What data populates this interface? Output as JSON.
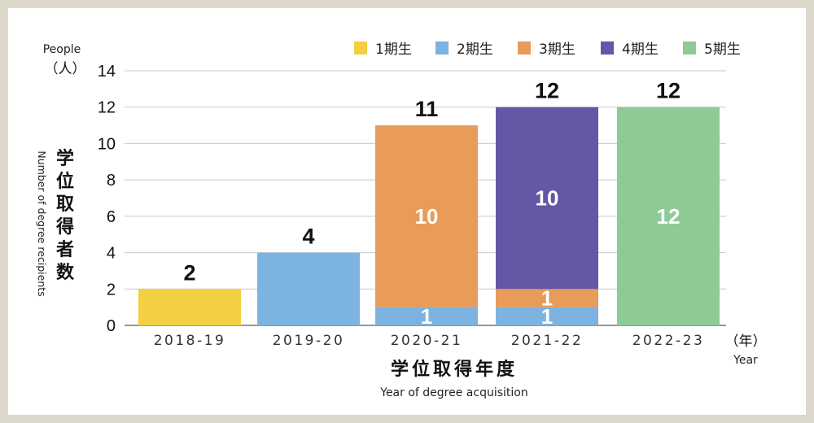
{
  "chart_data": {
    "type": "bar",
    "stacked": true,
    "title": "",
    "categories": [
      "2018-19",
      "2019-20",
      "2020-21",
      "2021-22",
      "2022-23"
    ],
    "series": [
      {
        "name": "1期生",
        "color": "#f2cf43",
        "values": [
          2,
          0,
          0,
          0,
          0
        ]
      },
      {
        "name": "2期生",
        "color": "#7cb3e1",
        "values": [
          0,
          4,
          1,
          1,
          0
        ]
      },
      {
        "name": "3期生",
        "color": "#e99b5a",
        "values": [
          0,
          0,
          10,
          1,
          0
        ]
      },
      {
        "name": "4期生",
        "color": "#6457a5",
        "values": [
          0,
          0,
          0,
          10,
          0
        ]
      },
      {
        "name": "5期生",
        "color": "#8dca95",
        "values": [
          0,
          0,
          0,
          0,
          12
        ]
      }
    ],
    "totals": [
      2,
      4,
      11,
      12,
      12
    ],
    "segment_labels": [
      {
        "category": "2020-21",
        "series": "2期生",
        "value": 1
      },
      {
        "category": "2020-21",
        "series": "3期生",
        "value": 10
      },
      {
        "category": "2021-22",
        "series": "2期生",
        "value": 1
      },
      {
        "category": "2021-22",
        "series": "3期生",
        "value": 1
      },
      {
        "category": "2021-22",
        "series": "4期生",
        "value": 10
      },
      {
        "category": "2022-23",
        "series": "5期生",
        "value": 12
      }
    ],
    "yticks": [
      0,
      2,
      4,
      6,
      8,
      10,
      12,
      14
    ],
    "ylim": [
      0,
      14
    ],
    "grid": true,
    "legend_position": "top-right",
    "ylabel": "学位取得者数",
    "ylabel_en": "Number of degree recipients",
    "yunit_en": "People",
    "yunit_jp": "（人）",
    "xlabel": "学位取得年度",
    "xlabel_en": "Year of degree acquisition",
    "xunit_jp": "（年）",
    "xunit_en": "Year"
  }
}
